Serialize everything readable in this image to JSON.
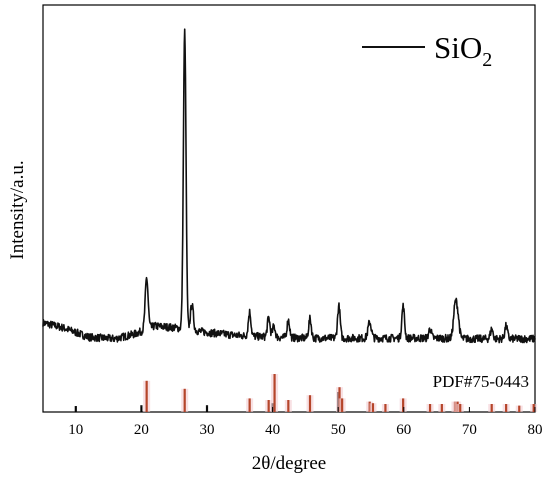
{
  "chart_data": {
    "type": "line",
    "title": "",
    "xlabel": "2θ/degree",
    "ylabel": "Intensity/a.u.",
    "xlim": [
      5,
      80
    ],
    "x_ticks": [
      10,
      20,
      30,
      40,
      50,
      60,
      70,
      80
    ],
    "grid": false,
    "legend": {
      "position": "top-right",
      "label_main": "SiO",
      "label_sub": "2"
    },
    "line_color": "#111111",
    "reference_color": "#b5452a",
    "reference_label": "PDF#75-0443",
    "series": [
      {
        "name": "SiO2",
        "baseline": [
          [
            5,
            0.085
          ],
          [
            8,
            0.07
          ],
          [
            12,
            0.04
          ],
          [
            16,
            0.035
          ],
          [
            19,
            0.05
          ],
          [
            22,
            0.075
          ],
          [
            25,
            0.07
          ],
          [
            30,
            0.055
          ],
          [
            35,
            0.045
          ],
          [
            40,
            0.04
          ],
          [
            45,
            0.037
          ],
          [
            50,
            0.037
          ],
          [
            55,
            0.037
          ],
          [
            60,
            0.037
          ],
          [
            65,
            0.037
          ],
          [
            70,
            0.035
          ],
          [
            75,
            0.035
          ],
          [
            80,
            0.035
          ]
        ],
        "peaks": [
          {
            "x": 20.8,
            "height": 0.16,
            "width": 0.22
          },
          {
            "x": 26.6,
            "height": 0.93,
            "width": 0.2
          },
          {
            "x": 27.7,
            "height": 0.08,
            "width": 0.22
          },
          {
            "x": 36.5,
            "height": 0.075,
            "width": 0.2
          },
          {
            "x": 39.4,
            "height": 0.06,
            "width": 0.2
          },
          {
            "x": 40.2,
            "height": 0.035,
            "width": 0.2
          },
          {
            "x": 42.4,
            "height": 0.055,
            "width": 0.2
          },
          {
            "x": 45.7,
            "height": 0.06,
            "width": 0.2
          },
          {
            "x": 50.1,
            "height": 0.1,
            "width": 0.2
          },
          {
            "x": 54.8,
            "height": 0.05,
            "width": 0.25
          },
          {
            "x": 59.9,
            "height": 0.1,
            "width": 0.2
          },
          {
            "x": 64.0,
            "height": 0.03,
            "width": 0.2
          },
          {
            "x": 67.8,
            "height": 0.09,
            "width": 0.25
          },
          {
            "x": 68.2,
            "height": 0.07,
            "width": 0.25
          },
          {
            "x": 73.4,
            "height": 0.03,
            "width": 0.2
          },
          {
            "x": 75.6,
            "height": 0.04,
            "width": 0.2
          }
        ]
      }
    ],
    "reference_peaks": [
      {
        "x": 10.0,
        "intensity": 0.15,
        "color": "#111111"
      },
      {
        "x": 20.0,
        "intensity": 0.17,
        "color": "#111111"
      },
      {
        "x": 20.8,
        "intensity": 0.78,
        "color": "#b5452a"
      },
      {
        "x": 26.6,
        "intensity": 0.58,
        "color": "#b5452a"
      },
      {
        "x": 30.0,
        "intensity": 0.17,
        "color": "#111111"
      },
      {
        "x": 36.5,
        "intensity": 0.34,
        "color": "#b5452a"
      },
      {
        "x": 39.4,
        "intensity": 0.3,
        "color": "#b5452a"
      },
      {
        "x": 40.0,
        "intensity": 0.22,
        "color": "#111111"
      },
      {
        "x": 40.3,
        "intensity": 0.95,
        "color": "#b5452a"
      },
      {
        "x": 42.4,
        "intensity": 0.3,
        "color": "#b5452a"
      },
      {
        "x": 45.7,
        "intensity": 0.42,
        "color": "#b5452a"
      },
      {
        "x": 50.0,
        "intensity": 0.5,
        "color": "#111111"
      },
      {
        "x": 50.2,
        "intensity": 0.62,
        "color": "#b5452a"
      },
      {
        "x": 50.6,
        "intensity": 0.34,
        "color": "#b5452a"
      },
      {
        "x": 54.8,
        "intensity": 0.26,
        "color": "#b5452a"
      },
      {
        "x": 55.3,
        "intensity": 0.22,
        "color": "#b5452a"
      },
      {
        "x": 57.2,
        "intensity": 0.2,
        "color": "#b5452a"
      },
      {
        "x": 59.9,
        "intensity": 0.34,
        "color": "#b5452a"
      },
      {
        "x": 64.0,
        "intensity": 0.2,
        "color": "#b5452a"
      },
      {
        "x": 65.8,
        "intensity": 0.2,
        "color": "#b5452a"
      },
      {
        "x": 67.8,
        "intensity": 0.26,
        "color": "#b5452a"
      },
      {
        "x": 68.2,
        "intensity": 0.26,
        "color": "#b5452a"
      },
      {
        "x": 68.6,
        "intensity": 0.2,
        "color": "#b5452a"
      },
      {
        "x": 73.4,
        "intensity": 0.2,
        "color": "#b5452a"
      },
      {
        "x": 75.6,
        "intensity": 0.2,
        "color": "#b5452a"
      },
      {
        "x": 77.6,
        "intensity": 0.16,
        "color": "#b5452a"
      },
      {
        "x": 79.8,
        "intensity": 0.2,
        "color": "#b5452a"
      }
    ]
  }
}
